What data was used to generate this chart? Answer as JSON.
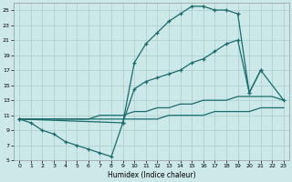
{
  "xlabel": "Humidex (Indice chaleur)",
  "bg_color": "#cce8e8",
  "grid_color": "#aacccc",
  "line_color": "#1a6b6b",
  "xlim": [
    -0.5,
    23.5
  ],
  "ylim": [
    5,
    26
  ],
  "yticks": [
    5,
    7,
    9,
    11,
    13,
    15,
    17,
    19,
    21,
    23,
    25
  ],
  "xticks": [
    0,
    1,
    2,
    3,
    4,
    5,
    6,
    7,
    8,
    9,
    10,
    11,
    12,
    13,
    14,
    15,
    16,
    17,
    18,
    19,
    20,
    21,
    22,
    23
  ],
  "lx1": [
    0,
    1,
    2,
    3,
    4,
    5,
    6,
    7,
    8,
    9,
    10,
    11,
    12,
    13,
    14,
    15,
    16,
    17,
    18,
    19,
    20,
    21
  ],
  "ly1": [
    10.5,
    10.0,
    9.0,
    8.5,
    7.5,
    7.0,
    6.5,
    6.0,
    5.5,
    10.0,
    18.0,
    20.5,
    22.0,
    23.5,
    24.5,
    25.5,
    25.5,
    25.0,
    25.0,
    24.5,
    14.0,
    17.0
  ],
  "lx2": [
    0,
    9,
    10,
    11,
    12,
    13,
    14,
    15,
    16,
    17,
    18,
    19,
    20,
    21,
    23
  ],
  "ly2": [
    10.5,
    10.0,
    14.5,
    15.5,
    16.0,
    16.5,
    17.0,
    18.0,
    18.5,
    19.5,
    20.5,
    21.0,
    14.0,
    17.0,
    13.0
  ],
  "lx3": [
    0,
    4,
    5,
    6,
    7,
    8,
    9,
    10,
    11,
    12,
    13,
    14,
    15,
    16,
    17,
    18,
    19,
    20,
    21,
    22,
    23
  ],
  "ly3": [
    10.5,
    10.5,
    10.5,
    10.5,
    11.0,
    11.0,
    11.0,
    11.5,
    11.5,
    12.0,
    12.0,
    12.5,
    12.5,
    13.0,
    13.0,
    13.0,
    13.5,
    13.5,
    13.5,
    13.5,
    13.0
  ],
  "lx4": [
    0,
    1,
    2,
    3,
    4,
    5,
    6,
    7,
    8,
    9,
    10,
    11,
    12,
    13,
    14,
    15,
    16,
    17,
    18,
    19,
    20,
    21,
    22,
    23
  ],
  "ly4": [
    10.5,
    10.5,
    10.5,
    10.5,
    10.5,
    10.5,
    10.5,
    10.5,
    10.5,
    10.5,
    10.5,
    10.5,
    10.5,
    11.0,
    11.0,
    11.0,
    11.0,
    11.5,
    11.5,
    11.5,
    11.5,
    12.0,
    12.0,
    12.0
  ]
}
